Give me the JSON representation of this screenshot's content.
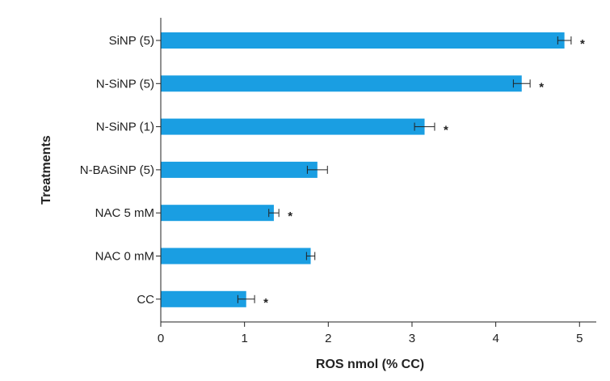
{
  "chart_data": {
    "type": "bar",
    "orientation": "horizontal",
    "categories": [
      "SiNP (5)",
      "N-SiNP (5)",
      "N-SiNP (1)",
      "N-BASiNP (5)",
      "NAC 5 mM",
      "NAC 0 mM",
      "CC"
    ],
    "values": [
      4.82,
      4.31,
      3.15,
      1.87,
      1.35,
      1.79,
      1.02
    ],
    "errors": [
      0.08,
      0.1,
      0.12,
      0.12,
      0.06,
      0.05,
      0.1
    ],
    "significant": [
      "*",
      "*",
      "*",
      "",
      "*",
      "",
      "*"
    ],
    "title": "",
    "xlabel": "ROS nmol (% CC)",
    "ylabel": "Treatments",
    "xlim": [
      0,
      5.2
    ],
    "xticks": [
      "0",
      "1",
      "2",
      "3",
      "4",
      "5"
    ],
    "grid": false,
    "bar_color": "#1a9ee2",
    "error_color": "#222222"
  }
}
